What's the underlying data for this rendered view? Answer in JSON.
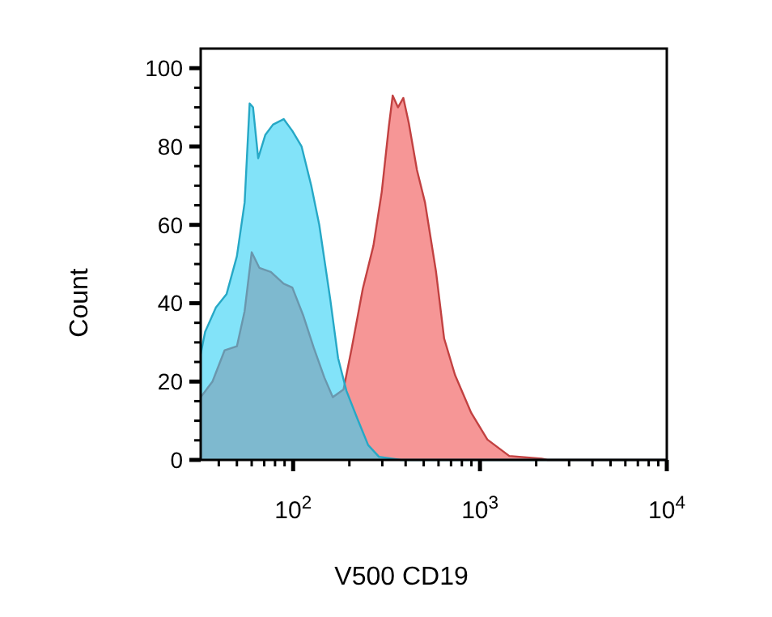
{
  "chart_data": {
    "type": "area",
    "xlabel": "V500 CD19",
    "ylabel": "Count",
    "log": "x",
    "grid": false,
    "xlim": [
      32,
      10000
    ],
    "ylim": [
      0,
      105
    ],
    "xticks": [
      {
        "value": 40,
        "label": null
      },
      {
        "value": 50,
        "label": null
      },
      {
        "value": 60,
        "label": null
      },
      {
        "value": 70,
        "label": null
      },
      {
        "value": 80,
        "label": null
      },
      {
        "value": 90,
        "label": null
      },
      {
        "value": 100,
        "label": "10$^{2}$"
      },
      {
        "value": 200,
        "label": null
      },
      {
        "value": 300,
        "label": null
      },
      {
        "value": 400,
        "label": null
      },
      {
        "value": 500,
        "label": null
      },
      {
        "value": 600,
        "label": null
      },
      {
        "value": 700,
        "label": null
      },
      {
        "value": 800,
        "label": null
      },
      {
        "value": 900,
        "label": null
      },
      {
        "value": 1000,
        "label": "10$^{3}$"
      },
      {
        "value": 2000,
        "label": null
      },
      {
        "value": 3000,
        "label": null
      },
      {
        "value": 4000,
        "label": null
      },
      {
        "value": 5000,
        "label": null
      },
      {
        "value": 6000,
        "label": null
      },
      {
        "value": 7000,
        "label": null
      },
      {
        "value": 8000,
        "label": null
      },
      {
        "value": 9000,
        "label": null
      },
      {
        "value": 10000,
        "label": "10$^{4}$"
      }
    ],
    "yticks": [
      0,
      {
        "value": 5,
        "label": null
      },
      {
        "value": 10,
        "label": null
      },
      {
        "value": 15,
        "label": null
      },
      20,
      {
        "value": 25,
        "label": null
      },
      {
        "value": 30,
        "label": null
      },
      {
        "value": 35,
        "label": null
      },
      40,
      {
        "value": 45,
        "label": null
      },
      {
        "value": 50,
        "label": null
      },
      {
        "value": 55,
        "label": null
      },
      60,
      {
        "value": 65,
        "label": null
      },
      {
        "value": 70,
        "label": null
      },
      {
        "value": 75,
        "label": null
      },
      80,
      {
        "value": 85,
        "label": null
      },
      {
        "value": 90,
        "label": null
      },
      {
        "value": 95,
        "label": null
      },
      100
    ],
    "series": [
      {
        "color": "#f05050",
        "x": [
          32,
          37,
          43,
          50,
          55,
          60,
          66,
          76,
          89,
          99,
          113,
          129,
          147,
          163,
          186,
          206,
          236,
          269,
          298,
          325,
          341,
          364,
          389,
          416,
          460,
          508,
          582,
          643,
          735,
          898,
          1096,
          1435,
          2140,
          2300,
          10000
        ],
        "values": [
          16,
          20,
          28,
          29,
          38,
          53,
          49,
          48,
          45,
          44,
          37,
          28.6,
          21,
          16,
          18,
          28.6,
          43.7,
          54.7,
          68.4,
          85,
          93,
          90,
          92.4,
          86,
          74,
          65.7,
          48,
          31,
          21.7,
          12,
          5.2,
          1,
          0.3,
          0,
          0
        ]
      },
      {
        "color": "#2fd0f5",
        "x": [
          32,
          33.8,
          38.6,
          44,
          50,
          55,
          58.5,
          61,
          65,
          71,
          78,
          89,
          99,
          111,
          125,
          138,
          158,
          174,
          193,
          220,
          252,
          288,
          377,
          10000
        ],
        "values": [
          27,
          32.7,
          38.9,
          42.3,
          52,
          65.7,
          91,
          90,
          77,
          83,
          85.6,
          87,
          84,
          80,
          70,
          60,
          41,
          26,
          17.6,
          10.7,
          3.8,
          0.8,
          0,
          0
        ]
      }
    ]
  }
}
